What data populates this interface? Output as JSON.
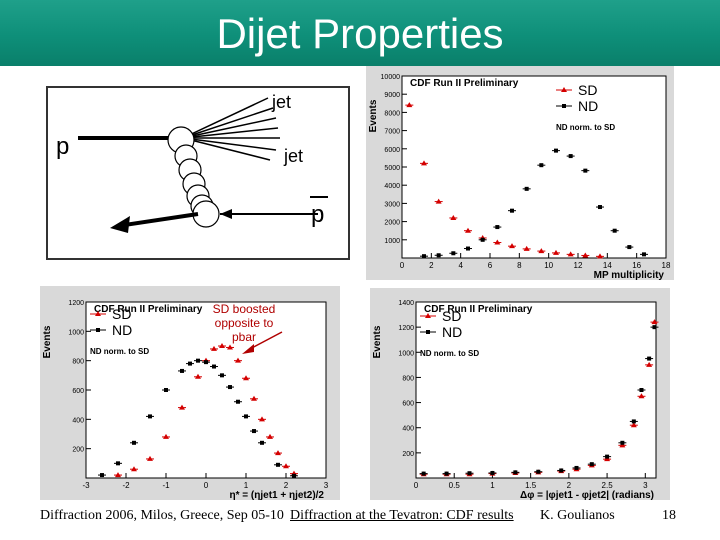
{
  "slide": {
    "title": "Dijet Properties",
    "footer": {
      "conference": "Diffraction 2006, Milos, Greece, Sep 05-10",
      "talk": "Diffraction at the Tevatron: CDF results",
      "author": "K. Goulianos",
      "page": "18"
    }
  },
  "diagram": {
    "jet1": "jet",
    "jet2": "jet",
    "p": "p",
    "pbar": "p"
  },
  "annotation": {
    "line1": "SD boosted",
    "line2": "opposite to pbar"
  },
  "colors": {
    "title_bar": "#0e8f79",
    "sd": "#d40000",
    "nd": "#000000",
    "panel": "#d9d9d9"
  },
  "chart_data": [
    {
      "type": "scatter",
      "title": "CDF Run II Preliminary",
      "xlabel": "MP multiplicity",
      "ylabel": "Events",
      "xlim": [
        0,
        18
      ],
      "ylim": [
        0,
        10000
      ],
      "xticks": [
        "0",
        "2",
        "4",
        "6",
        "8",
        "10",
        "12",
        "14",
        "16",
        "18"
      ],
      "yticks": [
        "1000",
        "2000",
        "3000",
        "4000",
        "5000",
        "6000",
        "7000",
        "8000",
        "9000",
        "10000"
      ],
      "legend": [
        "SD",
        "ND"
      ],
      "legend_note": "ND norm. to SD",
      "series": [
        {
          "name": "SD",
          "x": [
            0.5,
            1.5,
            2.5,
            3.5,
            4.5,
            5.5,
            6.5,
            7.5,
            8.5,
            9.5,
            10.5,
            11.5,
            12.5,
            13.5
          ],
          "y": [
            8400,
            5200,
            3100,
            2200,
            1500,
            1100,
            850,
            650,
            500,
            380,
            280,
            200,
            140,
            90
          ]
        },
        {
          "name": "ND",
          "x": [
            1.5,
            2.5,
            3.5,
            4.5,
            5.5,
            6.5,
            7.5,
            8.5,
            9.5,
            10.5,
            11.5,
            12.5,
            13.5,
            14.5,
            15.5,
            16.5
          ],
          "y": [
            100,
            150,
            260,
            520,
            1000,
            1700,
            2600,
            3800,
            5100,
            5900,
            5600,
            4800,
            2800,
            1500,
            600,
            200
          ]
        }
      ]
    },
    {
      "type": "scatter",
      "title": "CDF Run II Preliminary",
      "xlabel": "η* = (ηjet1 + ηjet2)/2",
      "ylabel": "Events",
      "xlim": [
        -3,
        3
      ],
      "ylim": [
        0,
        1200
      ],
      "xticks": [
        "-3",
        "-2",
        "-1",
        "0",
        "1",
        "2",
        "3"
      ],
      "yticks": [
        "200",
        "400",
        "600",
        "800",
        "1000",
        "1200"
      ],
      "legend": [
        "SD",
        "ND"
      ],
      "legend_note": "ND norm. to SD",
      "series": [
        {
          "name": "SD",
          "x": [
            -2.2,
            -1.8,
            -1.4,
            -1.0,
            -0.6,
            -0.2,
            0.0,
            0.2,
            0.4,
            0.6,
            0.8,
            1.0,
            1.2,
            1.4,
            1.6,
            1.8,
            2.0,
            2.2
          ],
          "y": [
            20,
            60,
            130,
            280,
            480,
            690,
            800,
            880,
            900,
            890,
            800,
            680,
            540,
            400,
            280,
            170,
            80,
            30
          ]
        },
        {
          "name": "ND",
          "x": [
            -2.6,
            -2.2,
            -1.8,
            -1.4,
            -1.0,
            -0.6,
            -0.4,
            -0.2,
            0.0,
            0.2,
            0.4,
            0.6,
            0.8,
            1.0,
            1.2,
            1.4,
            1.8,
            2.2
          ],
          "y": [
            20,
            100,
            240,
            420,
            600,
            730,
            780,
            800,
            790,
            760,
            700,
            620,
            520,
            420,
            320,
            240,
            90,
            15
          ]
        }
      ]
    },
    {
      "type": "scatter",
      "title": "CDF Run II Preliminary",
      "xlabel": "Δφ = |φjet1 - φjet2| (radians)",
      "ylabel": "Events",
      "xlim": [
        0,
        3.14
      ],
      "ylim": [
        0,
        1400
      ],
      "xticks": [
        "0",
        "0.5",
        "1",
        "1.5",
        "2",
        "2.5",
        "3"
      ],
      "yticks": [
        "200",
        "400",
        "600",
        "800",
        "1000",
        "1200",
        "1400"
      ],
      "legend": [
        "SD",
        "ND"
      ],
      "legend_note": "ND norm. to SD",
      "series": [
        {
          "name": "SD",
          "x": [
            0.1,
            0.4,
            0.7,
            1.0,
            1.3,
            1.6,
            1.9,
            2.1,
            2.3,
            2.5,
            2.7,
            2.85,
            2.95,
            3.05,
            3.12
          ],
          "y": [
            30,
            30,
            30,
            35,
            40,
            45,
            55,
            70,
            100,
            150,
            260,
            420,
            650,
            900,
            1240
          ]
        },
        {
          "name": "ND",
          "x": [
            0.1,
            0.4,
            0.7,
            1.0,
            1.3,
            1.6,
            1.9,
            2.1,
            2.3,
            2.5,
            2.7,
            2.85,
            2.95,
            3.05,
            3.12
          ],
          "y": [
            35,
            35,
            38,
            40,
            45,
            50,
            60,
            80,
            110,
            170,
            280,
            450,
            700,
            950,
            1200
          ]
        }
      ]
    }
  ]
}
